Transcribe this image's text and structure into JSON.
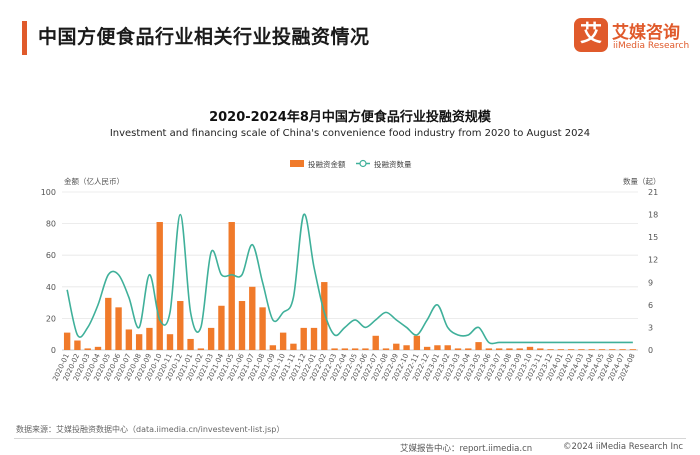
{
  "header": {
    "title": "中国方便食品行业相关行业投融资情况"
  },
  "brand": {
    "logo_char": "艾",
    "name": "艾媒咨询",
    "sub": "iiMedia Research"
  },
  "colors": {
    "accent": "#e05a2b",
    "bar": "#f07a2a",
    "line": "#3fb09a",
    "grid": "#e6e6e6"
  },
  "chart_data": {
    "type": "bar",
    "title": "2020-2024年8月中国方便食品行业投融资规模",
    "subtitle": "Investment and financing scale of China's convenience food industry from 2020 to August 2024",
    "categories": [
      "2020-01",
      "2020-02",
      "2020-03",
      "2020-04",
      "2020-05",
      "2020-06",
      "2020-07",
      "2020-08",
      "2020-09",
      "2020-10",
      "2020-11",
      "2020-12",
      "2021-01",
      "2021-02",
      "2021-03",
      "2021-04",
      "2021-05",
      "2021-06",
      "2021-07",
      "2021-08",
      "2021-09",
      "2021-10",
      "2021-11",
      "2021-12",
      "2022-01",
      "2022-02",
      "2022-03",
      "2022-04",
      "2022-05",
      "2022-06",
      "2022-07",
      "2022-08",
      "2022-09",
      "2022-10",
      "2022-11",
      "2022-12",
      "2023-01",
      "2023-02",
      "2023-03",
      "2023-04",
      "2023-05",
      "2023-06",
      "2023-07",
      "2023-08",
      "2023-09",
      "2023-10",
      "2023-11",
      "2023-12",
      "2024-01",
      "2024-02",
      "2024-03",
      "2024-04",
      "2024-05",
      "2024-06",
      "2024-07",
      "2024-08"
    ],
    "xtick_labels": [
      "2020-01",
      "2020-02",
      "2020-03",
      "2020-04",
      "2020-05",
      "2020-06",
      "2020-07",
      "2020-08",
      "2020-09",
      "2020-10",
      "2020-11",
      "2020-12",
      "2021-01",
      "2021-02",
      "2021-03",
      "2021-04",
      "2021-05",
      "2021-06",
      "2021-07",
      "2021-08",
      "2021-09",
      "2021-10",
      "2021-11",
      "2021-12",
      "2022-01",
      "2022-02",
      "2022-03",
      "2022-04",
      "2022-05",
      "2022-06",
      "2022-07",
      "2022-08",
      "2022-09",
      "2022-10",
      "2022-11",
      "2022-12",
      "2023-01",
      "2023-02",
      "2023-03",
      "2023-04",
      "2023-05",
      "2023-06",
      "2023-07",
      "2023-08",
      "2023-09",
      "2023-10",
      "2023-11",
      "2023-12",
      "2024-01",
      "2024-02",
      "2024-03",
      "2024-04",
      "2024-05",
      "2024-06",
      "2024-07",
      "2024-08"
    ],
    "series": [
      {
        "name": "投融资金额",
        "type": "bar",
        "axis": "left",
        "values": [
          11,
          6,
          1,
          2,
          33,
          27,
          13,
          10,
          14,
          81,
          10,
          31,
          7,
          1,
          14,
          28,
          81,
          31,
          40,
          27,
          3,
          11,
          4,
          14,
          14,
          43,
          1,
          1,
          1,
          1,
          9,
          1,
          4,
          3,
          9,
          2,
          3,
          3,
          1,
          1,
          5,
          1,
          1,
          1,
          1,
          2,
          1,
          0.5,
          0.5,
          0.5,
          0.5,
          0.5,
          0.5,
          0.5,
          0.5,
          0.5
        ]
      },
      {
        "name": "投融资数量",
        "type": "line",
        "axis": "right",
        "values": [
          8,
          2,
          3,
          6,
          10,
          10,
          7,
          3,
          10,
          4,
          5,
          18,
          5,
          3,
          13,
          10,
          10,
          10,
          14,
          9,
          4,
          5,
          7,
          18,
          11,
          5,
          2,
          3,
          4,
          3,
          4,
          5,
          4,
          3,
          2,
          4,
          6,
          3,
          2,
          2,
          3,
          1,
          1,
          1,
          1,
          1,
          1,
          1,
          1,
          1,
          1,
          1,
          1,
          1,
          1,
          1
        ]
      }
    ],
    "ylabel": "金额（亿人民币）",
    "y2label": "数量（起）",
    "ylim": [
      0,
      100
    ],
    "y2lim": [
      0,
      21
    ],
    "yticks": [
      0,
      20,
      40,
      60,
      80,
      100
    ],
    "y2ticks": [
      0,
      3,
      6,
      9,
      12,
      15,
      18,
      21
    ],
    "legend": [
      "投融资金额",
      "投融资数量"
    ],
    "legend_position": "top-center",
    "grid": true
  },
  "footer": {
    "source": "数据来源：艾媒投融资数据中心（data.iimedia.cn/investevent-list.jsp）",
    "report_site": "艾媒报告中心：report.iimedia.cn",
    "copyright": "©2024  iiMedia Research Inc"
  }
}
